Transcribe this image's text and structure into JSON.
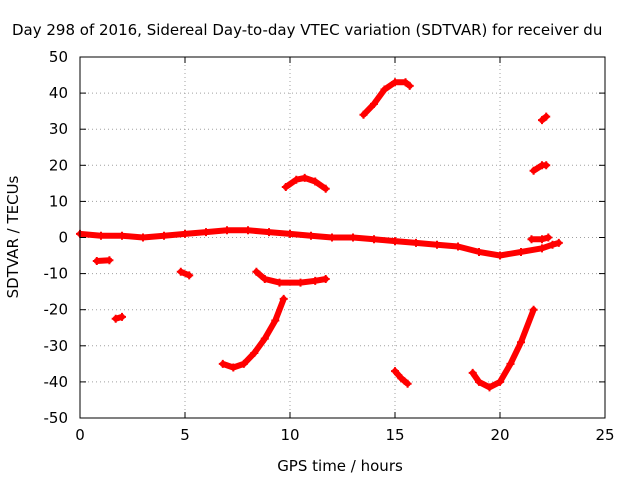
{
  "chart_data": {
    "type": "scatter",
    "title": "Day 298 of 2016, Sidereal Day-to-day VTEC variation (SDTVAR) for receiver du",
    "xlabel": "GPS time / hours",
    "ylabel": "SDTVAR / TECUs",
    "xlim": [
      0,
      25
    ],
    "ylim": [
      -50,
      50
    ],
    "x_ticks": [
      0,
      5,
      10,
      15,
      20,
      25
    ],
    "y_ticks": [
      -50,
      -40,
      -30,
      -20,
      -10,
      0,
      10,
      20,
      30,
      40,
      50
    ],
    "grid": true,
    "marker_color": "#ff0000",
    "series": [
      {
        "name": "main-band",
        "points": [
          [
            0.0,
            1.0
          ],
          [
            1.0,
            0.5
          ],
          [
            2.0,
            0.5
          ],
          [
            3.0,
            0.0
          ],
          [
            4.0,
            0.5
          ],
          [
            5.0,
            1.0
          ],
          [
            6.0,
            1.5
          ],
          [
            7.0,
            2.0
          ],
          [
            8.0,
            2.0
          ],
          [
            9.0,
            1.5
          ],
          [
            10.0,
            1.0
          ],
          [
            11.0,
            0.5
          ],
          [
            12.0,
            0.0
          ],
          [
            13.0,
            0.0
          ],
          [
            14.0,
            -0.5
          ],
          [
            15.0,
            -1.0
          ],
          [
            16.0,
            -1.5
          ],
          [
            17.0,
            -2.0
          ],
          [
            18.0,
            -2.5
          ],
          [
            19.0,
            -4.0
          ],
          [
            20.0,
            -5.0
          ],
          [
            21.0,
            -4.0
          ],
          [
            22.0,
            -3.0
          ],
          [
            22.5,
            -2.0
          ],
          [
            22.8,
            -1.5
          ]
        ]
      },
      {
        "name": "segment-a",
        "points": [
          [
            0.8,
            -6.5
          ],
          [
            1.4,
            -6.3
          ]
        ]
      },
      {
        "name": "segment-b",
        "points": [
          [
            1.7,
            -22.5
          ],
          [
            2.0,
            -22.0
          ]
        ]
      },
      {
        "name": "segment-c",
        "points": [
          [
            4.8,
            -9.5
          ],
          [
            5.2,
            -10.5
          ]
        ]
      },
      {
        "name": "segment-d",
        "points": [
          [
            6.8,
            -35.0
          ],
          [
            7.3,
            -36.0
          ],
          [
            7.8,
            -35.0
          ],
          [
            8.3,
            -32.0
          ],
          [
            8.8,
            -28.0
          ],
          [
            9.3,
            -23.0
          ],
          [
            9.7,
            -17.0
          ]
        ]
      },
      {
        "name": "segment-e",
        "points": [
          [
            8.4,
            -9.5
          ],
          [
            8.8,
            -11.5
          ],
          [
            9.5,
            -12.5
          ],
          [
            10.5,
            -12.5
          ],
          [
            11.2,
            -12.0
          ],
          [
            11.7,
            -11.5
          ]
        ]
      },
      {
        "name": "segment-f",
        "points": [
          [
            9.8,
            14.0
          ],
          [
            10.3,
            16.0
          ],
          [
            10.7,
            16.5
          ],
          [
            11.2,
            15.5
          ],
          [
            11.7,
            13.5
          ]
        ]
      },
      {
        "name": "segment-g",
        "points": [
          [
            13.5,
            34.0
          ],
          [
            14.0,
            37.0
          ],
          [
            14.5,
            41.0
          ],
          [
            15.0,
            43.0
          ],
          [
            15.5,
            43.0
          ],
          [
            15.7,
            42.0
          ]
        ]
      },
      {
        "name": "segment-h",
        "points": [
          [
            15.0,
            -37.0
          ],
          [
            15.3,
            -39.0
          ],
          [
            15.6,
            -40.5
          ]
        ]
      },
      {
        "name": "segment-i",
        "points": [
          [
            18.7,
            -37.5
          ],
          [
            19.0,
            -40.0
          ],
          [
            19.5,
            -41.5
          ],
          [
            20.0,
            -40.0
          ],
          [
            20.5,
            -35.0
          ],
          [
            21.0,
            -29.0
          ],
          [
            21.6,
            -20.0
          ]
        ]
      },
      {
        "name": "segment-j",
        "points": [
          [
            21.5,
            -0.5
          ],
          [
            22.0,
            -0.5
          ],
          [
            22.3,
            0.0
          ]
        ]
      },
      {
        "name": "segment-k",
        "points": [
          [
            21.6,
            18.5
          ],
          [
            22.0,
            20.0
          ],
          [
            22.2,
            20.0
          ]
        ]
      },
      {
        "name": "segment-l",
        "points": [
          [
            22.0,
            32.5
          ],
          [
            22.2,
            33.5
          ]
        ]
      }
    ]
  }
}
